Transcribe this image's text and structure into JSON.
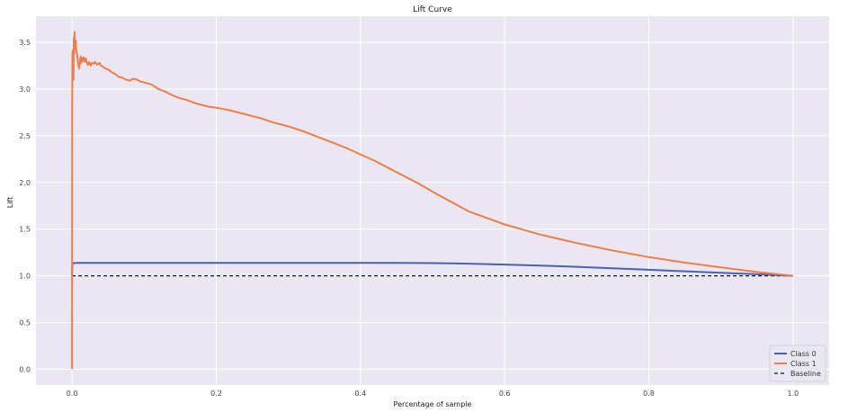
{
  "chart_data": {
    "type": "line",
    "title": "Lift Curve",
    "xlabel": "Percentage of sample",
    "ylabel": "Lift",
    "xlim": [
      -0.05,
      1.05
    ],
    "ylim": [
      -0.17,
      3.78
    ],
    "xticks": [
      "0.0",
      "0.2",
      "0.4",
      "0.6",
      "0.8",
      "1.0"
    ],
    "yticks": [
      "0.0",
      "0.5",
      "1.0",
      "1.5",
      "2.0",
      "2.5",
      "3.0",
      "3.5"
    ],
    "grid": true,
    "legend_position": "bottom-right",
    "background_color": "#eae7f2",
    "series": [
      {
        "name": "Class 0",
        "color": "#4c5fb8",
        "style": "solid",
        "x": [
          0.0,
          0.0005,
          0.002,
          0.01,
          0.1,
          0.2,
          0.3,
          0.4,
          0.45,
          0.5,
          0.55,
          0.6,
          0.65,
          0.7,
          0.75,
          0.8,
          0.85,
          0.9,
          0.95,
          1.0
        ],
        "y": [
          1.0,
          1.13,
          1.135,
          1.138,
          1.138,
          1.138,
          1.138,
          1.138,
          1.137,
          1.135,
          1.13,
          1.12,
          1.108,
          1.096,
          1.08,
          1.064,
          1.048,
          1.032,
          1.016,
          1.0
        ]
      },
      {
        "name": "Class 1",
        "color": "#ed7e4a",
        "style": "solid",
        "x": [
          0.0,
          0.0003,
          0.0006,
          0.001,
          0.0015,
          0.002,
          0.0025,
          0.003,
          0.0035,
          0.004,
          0.005,
          0.006,
          0.007,
          0.008,
          0.009,
          0.01,
          0.011,
          0.012,
          0.013,
          0.014,
          0.015,
          0.016,
          0.017,
          0.018,
          0.019,
          0.02,
          0.022,
          0.024,
          0.026,
          0.028,
          0.03,
          0.032,
          0.035,
          0.038,
          0.04,
          0.043,
          0.046,
          0.05,
          0.055,
          0.06,
          0.065,
          0.07,
          0.075,
          0.08,
          0.085,
          0.09,
          0.095,
          0.1,
          0.11,
          0.12,
          0.13,
          0.14,
          0.15,
          0.16,
          0.17,
          0.18,
          0.19,
          0.2,
          0.22,
          0.24,
          0.26,
          0.28,
          0.3,
          0.32,
          0.34,
          0.36,
          0.38,
          0.4,
          0.42,
          0.44,
          0.46,
          0.48,
          0.5,
          0.55,
          0.6,
          0.65,
          0.7,
          0.75,
          0.8,
          0.85,
          0.9,
          0.95,
          1.0
        ],
        "y": [
          0.0,
          2.85,
          3.4,
          3.3,
          3.42,
          3.1,
          3.55,
          3.38,
          3.61,
          3.45,
          3.52,
          3.4,
          3.38,
          3.3,
          3.25,
          3.22,
          3.3,
          3.35,
          3.28,
          3.33,
          3.3,
          3.34,
          3.31,
          3.29,
          3.33,
          3.3,
          3.26,
          3.29,
          3.25,
          3.28,
          3.27,
          3.29,
          3.26,
          3.28,
          3.25,
          3.24,
          3.22,
          3.21,
          3.18,
          3.16,
          3.13,
          3.12,
          3.1,
          3.09,
          3.11,
          3.1,
          3.08,
          3.07,
          3.05,
          3.0,
          2.97,
          2.93,
          2.9,
          2.88,
          2.85,
          2.83,
          2.81,
          2.8,
          2.77,
          2.73,
          2.69,
          2.64,
          2.6,
          2.55,
          2.49,
          2.43,
          2.37,
          2.3,
          2.23,
          2.15,
          2.07,
          1.99,
          1.9,
          1.69,
          1.55,
          1.44,
          1.35,
          1.27,
          1.2,
          1.14,
          1.09,
          1.04,
          1.0
        ]
      },
      {
        "name": "Baseline",
        "color": "#111111",
        "style": "dashed",
        "x": [
          0.0,
          1.0
        ],
        "y": [
          1.0,
          1.0
        ]
      }
    ]
  }
}
